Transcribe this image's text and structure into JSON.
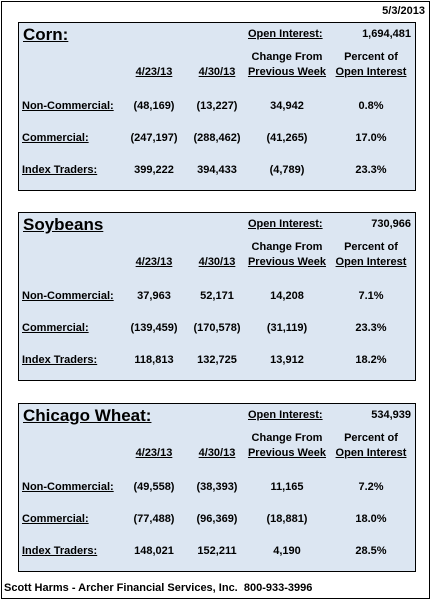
{
  "date": "5/3/2013",
  "panels": [
    {
      "title": "Corn:",
      "open_interest_label": "Open Interest:",
      "open_interest": "1,694,481",
      "headers": [
        [
          "4/23/13"
        ],
        [
          "4/30/13"
        ],
        [
          "Change From",
          "Previous Week"
        ],
        [
          "Percent of",
          "Open Interest"
        ]
      ],
      "rows": [
        [
          "Non-Commercial:",
          "(48,169)",
          "(13,227)",
          "34,942",
          "0.8%"
        ],
        [
          "Commercial:",
          "(247,197)",
          "(288,462)",
          "(41,265)",
          "17.0%"
        ],
        [
          "Index Traders:",
          "399,222",
          "394,433",
          "(4,789)",
          "23.3%"
        ]
      ]
    },
    {
      "title": "Soybeans",
      "open_interest_label": "Open Interest:",
      "open_interest": "730,966",
      "headers": [
        [
          "4/23/13"
        ],
        [
          "4/30/13"
        ],
        [
          "Change From",
          "Previous Week"
        ],
        [
          "Percent of",
          "Open Interest"
        ]
      ],
      "rows": [
        [
          "Non-Commercial:",
          "37,963",
          "52,171",
          "14,208",
          "7.1%"
        ],
        [
          "Commercial:",
          "(139,459)",
          "(170,578)",
          "(31,119)",
          "23.3%"
        ],
        [
          "Index Traders:",
          "118,813",
          "132,725",
          "13,912",
          "18.2%"
        ]
      ]
    },
    {
      "title": "Chicago Wheat:",
      "open_interest_label": "Open Interest:",
      "open_interest": "534,939",
      "headers": [
        [
          "4/23/13"
        ],
        [
          "4/30/13"
        ],
        [
          "Change From",
          "Previous Week"
        ],
        [
          "Percent of",
          "Open Interest"
        ]
      ],
      "rows": [
        [
          "Non-Commercial:",
          "(49,558)",
          "(38,393)",
          "11,165",
          "7.2%"
        ],
        [
          "Commercial:",
          "(77,488)",
          "(96,369)",
          "(18,881)",
          "18.0%"
        ],
        [
          "Index Traders:",
          "148,021",
          "152,211",
          "4,190",
          "28.5%"
        ]
      ]
    }
  ],
  "footer": "Scott Harms - Archer Financial Services, Inc.  800-933-3996"
}
